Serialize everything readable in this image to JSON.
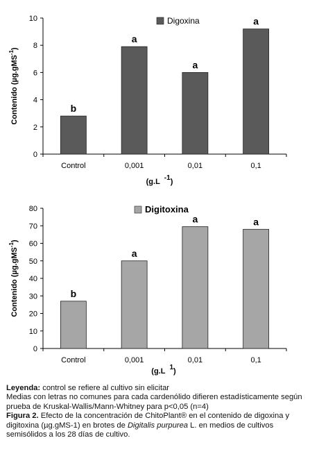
{
  "chart_data": [
    {
      "type": "bar",
      "categories": [
        "Control",
        "0,001",
        "0,01",
        "0,1"
      ],
      "values": [
        2.8,
        7.9,
        6.0,
        9.2
      ],
      "significance_letters": [
        "b",
        "a",
        "a",
        "a"
      ],
      "legend": "Digoxina",
      "legend_position": "top-right",
      "ylabel": "Contenido (µg.gMS-1)",
      "ylabel_parts": [
        "Contenido (µg.gMS",
        "-1",
        ")"
      ],
      "xlabel_parts": [
        "(g.L",
        "-1",
        ")"
      ],
      "ylim": [
        0,
        10
      ],
      "yticks": [
        0,
        2,
        4,
        6,
        8,
        10
      ],
      "bar_color": "#5a5a5a",
      "grid": false
    },
    {
      "type": "bar",
      "categories": [
        "Control",
        "0,001",
        "0,01",
        "0,1"
      ],
      "values": [
        27,
        50,
        69.5,
        68
      ],
      "significance_letters": [
        "b",
        "a",
        "a",
        "a"
      ],
      "legend": "Digitoxina",
      "legend_position": "top-center",
      "ylabel": "Contenido (µg.gMS-1)",
      "ylabel_parts": [
        "Contenido (µg.gMS",
        "-1",
        ")"
      ],
      "xlabel_parts": [
        "(g.L",
        "1",
        ")"
      ],
      "ylim": [
        0,
        80
      ],
      "yticks": [
        0,
        10,
        20,
        30,
        40,
        50,
        60,
        70,
        80
      ],
      "bar_color": "#a6a6a6",
      "grid": false
    }
  ],
  "caption": {
    "leyenda_label": "Leyenda:",
    "leyenda_text": " control se refiere al cultivo sin elicitar",
    "medias_text": "Medias con letras no comunes para cada cardenólido difieren estadísticamente según prueba de Kruskal-Wallis/Mann-Whitney para p<0,05 (n=4)",
    "figura_label": "Figura 2.",
    "figura_text_1": " Efecto de la concentración de ChitoPlant® en el contenido de digoxina y digitoxina (µg.gMS-1) en brotes de ",
    "species": "Digitalis purpurea",
    "figura_text_2": " L. en medios de cultivos semisólidos a los 28 días de cultivo."
  }
}
